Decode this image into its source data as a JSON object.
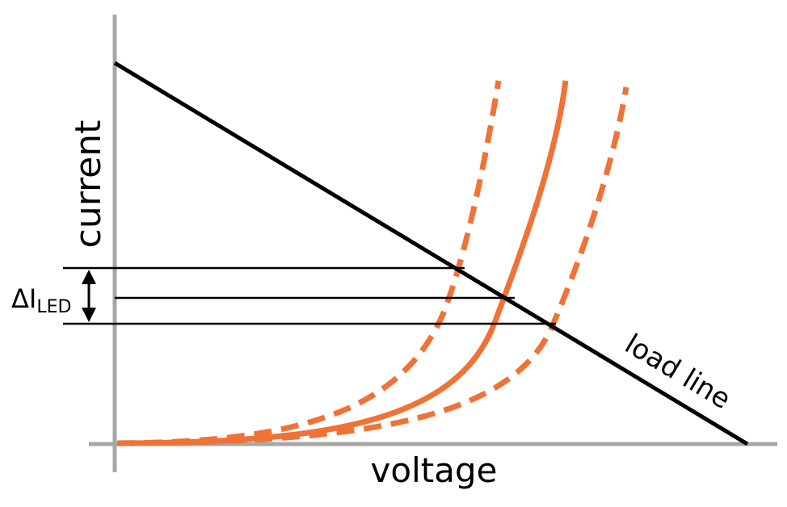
{
  "labels": {
    "y_axis": "current",
    "x_axis": "voltage",
    "load_line": "load line",
    "delta_symbol": "ΔI",
    "delta_subscript": "LED"
  },
  "colors": {
    "axis": "#a6a6a6",
    "led_curve": "#f07236",
    "load_line": "#000000"
  }
}
